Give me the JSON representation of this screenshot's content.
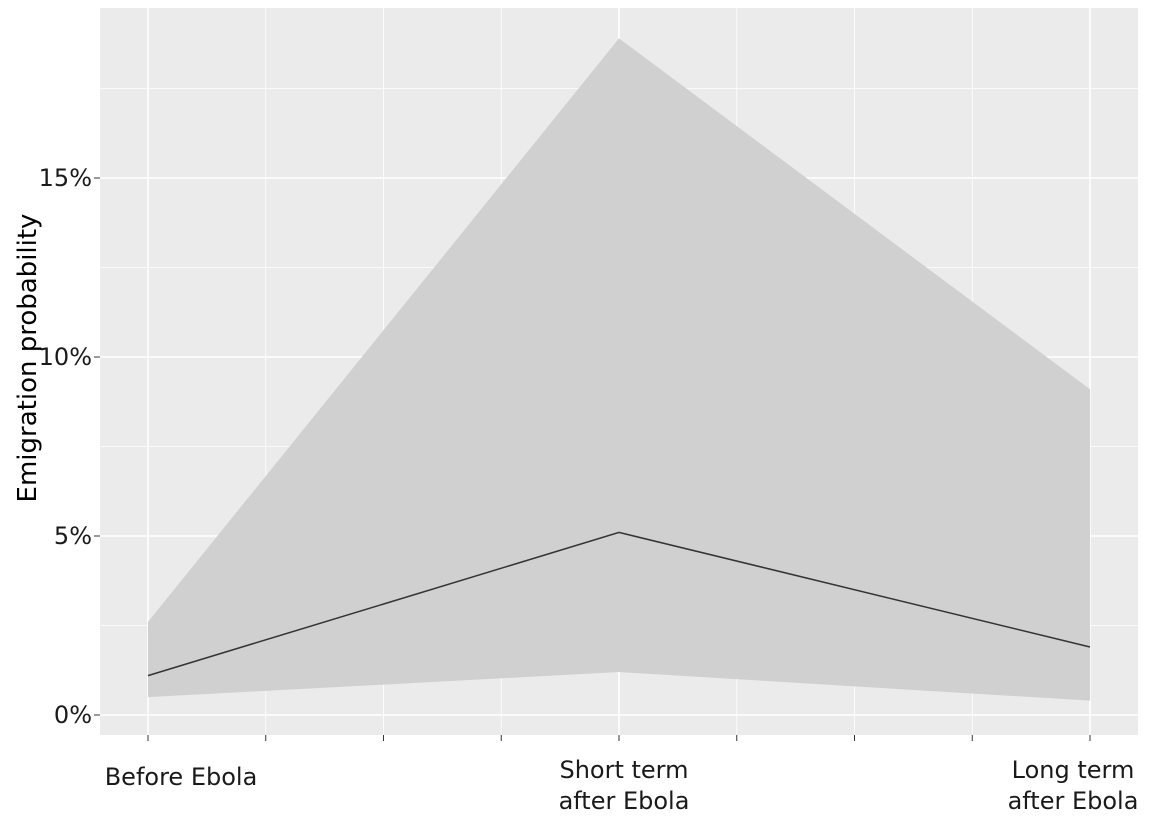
{
  "chart_data": {
    "type": "line",
    "categories": [
      "Before Ebola",
      "Short term after Ebola",
      "Long term after Ebola"
    ],
    "category_label_lines": [
      [
        "Before Ebola"
      ],
      [
        "Short term",
        "after Ebola"
      ],
      [
        "Long term",
        "after Ebola"
      ]
    ],
    "series": [
      {
        "values": [
          1.1,
          5.1,
          1.9
        ],
        "ci_lower": [
          0.5,
          1.2,
          0.4
        ],
        "ci_upper": [
          2.6,
          18.9,
          9.1
        ]
      }
    ],
    "ylabel": "Emigration probability",
    "xlabel": "",
    "ylim": [
      -0.6,
      19.8
    ],
    "yticks": [
      0,
      5,
      10,
      15
    ],
    "ytick_labels": [
      "0%",
      "5%",
      "10%",
      "15%"
    ],
    "grid": true,
    "colors": {
      "panel": "#ebebeb",
      "grid": "#ffffff",
      "ribbon": "#d0d0d0",
      "line": "#333333"
    }
  }
}
